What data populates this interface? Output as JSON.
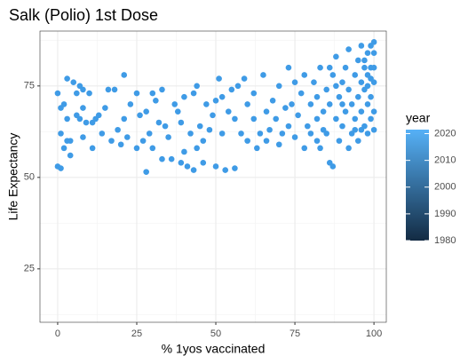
{
  "chart_data": {
    "type": "scatter",
    "title": "Salk (Polio) 1st Dose",
    "x_label": "% 1yos vaccinated",
    "y_label": "Life Expectancy",
    "xlim": [
      -5.6,
      103.9
    ],
    "ylim": [
      10.4,
      90
    ],
    "xticks": [
      0,
      25,
      50,
      75,
      100
    ],
    "yticks": [
      25,
      50,
      75
    ],
    "grid": true,
    "minor_grid": true,
    "point_color": "#3f9be6",
    "colorbar": {
      "title": "year",
      "low": "#132B43",
      "high": "#56B1F7",
      "lim": [
        1980,
        2021.5
      ],
      "ticks": [
        1980,
        1990,
        2000,
        2010,
        2020
      ]
    },
    "x": [
      0,
      0,
      1,
      1,
      2,
      1,
      2,
      3,
      4,
      3,
      3,
      4,
      5,
      6,
      6,
      7,
      7,
      8,
      8,
      9,
      8,
      10,
      11,
      11,
      12,
      13,
      14,
      15,
      16,
      17,
      18,
      19,
      20,
      21,
      21,
      22,
      23,
      25,
      25,
      26,
      27,
      28,
      28,
      29,
      30,
      30,
      31,
      32,
      33,
      33,
      34,
      35,
      36,
      37,
      38,
      39,
      39,
      40,
      40,
      41,
      42,
      43,
      43,
      44,
      44,
      45,
      46,
      46,
      47,
      48,
      49,
      50,
      50,
      51,
      52,
      52,
      53,
      54,
      55,
      56,
      56,
      57,
      58,
      59,
      60,
      60,
      62,
      62,
      63,
      64,
      65,
      66,
      66,
      67,
      68,
      69,
      70,
      70,
      71,
      72,
      73,
      73,
      74,
      75,
      75,
      76,
      77,
      78,
      78,
      79,
      80,
      80,
      81,
      82,
      82,
      83,
      83,
      84,
      85,
      85,
      86,
      86,
      87,
      87,
      88,
      88,
      89,
      89,
      90,
      90,
      91,
      91,
      92,
      92,
      92,
      93,
      93,
      94,
      94,
      95,
      95,
      95,
      96,
      96,
      96,
      97,
      97,
      97,
      98,
      98,
      98,
      98,
      99,
      99,
      99,
      99,
      100,
      100,
      100,
      100,
      100,
      100,
      94,
      96,
      97,
      98,
      99,
      90,
      88,
      86,
      84,
      82
    ],
    "y": [
      73,
      53,
      52.5,
      69,
      70,
      62,
      58,
      60,
      60,
      66,
      77,
      56,
      76,
      73,
      67,
      66,
      75,
      74,
      69,
      65,
      61,
      73,
      58,
      65,
      66,
      67,
      62,
      69,
      74,
      60,
      74,
      63,
      59,
      66,
      78,
      61,
      70,
      58,
      73,
      67,
      60,
      51.5,
      68,
      62,
      73,
      58,
      71,
      65,
      74,
      55,
      64,
      61,
      55,
      70,
      68,
      65,
      54,
      72,
      57,
      53,
      62,
      73,
      52,
      58,
      75,
      64,
      60,
      54,
      70,
      63,
      67,
      71,
      53,
      77,
      62,
      72,
      52,
      68,
      74,
      66,
      52.5,
      75,
      62,
      77,
      60,
      70,
      66,
      73,
      58,
      62,
      78,
      68,
      60,
      63,
      71,
      66,
      59,
      75,
      62,
      69,
      80,
      64,
      70,
      61,
      76,
      67,
      73,
      58,
      78,
      64,
      70,
      62,
      76,
      66,
      72,
      58,
      80,
      68,
      74,
      62,
      54,
      70,
      78,
      53,
      66,
      83,
      72,
      60,
      76,
      64,
      80,
      68,
      74,
      58,
      85,
      70,
      62,
      78,
      66,
      82,
      72,
      60,
      76,
      68,
      86,
      80,
      64,
      74,
      84,
      70,
      62,
      78,
      86,
      72,
      66,
      80,
      84,
      76,
      68,
      63,
      87,
      80,
      63,
      63,
      82,
      75,
      77,
      70,
      75,
      80,
      63,
      60
    ]
  }
}
